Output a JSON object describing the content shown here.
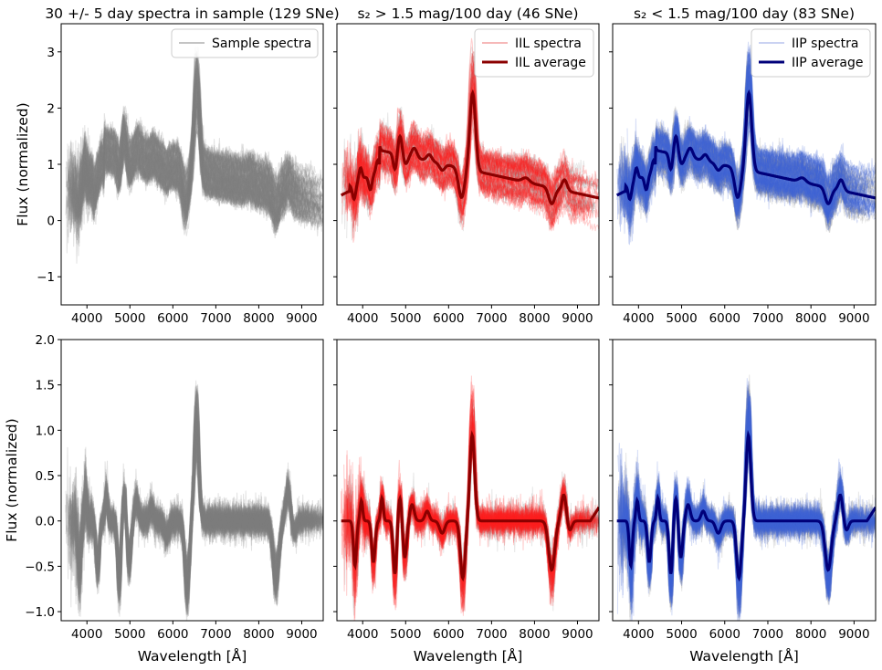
{
  "chart_data": [
    {
      "type": "line",
      "panel": "top-left",
      "title": "30 +/- 5 day spectra in sample (129 SNe)",
      "xlabel": "",
      "ylabel": "Flux (normalized)",
      "xlim": [
        3400,
        9500
      ],
      "ylim": [
        -1.5,
        3.5
      ],
      "xticks": [
        4000,
        5000,
        6000,
        7000,
        8000,
        9000
      ],
      "yticks": [
        -1,
        0,
        1,
        2,
        3
      ],
      "legend": {
        "placement": "top-right",
        "entries": [
          {
            "label": "Sample spectra",
            "color": "#b0b0b0",
            "style": "thin"
          }
        ]
      },
      "series": [
        {
          "name": "Sample spectra",
          "color": "#808080",
          "kind": "individual",
          "count": 129
        }
      ],
      "mode": "flux"
    },
    {
      "type": "line",
      "panel": "top-middle",
      "title": "s₂ > 1.5 mag/100 day (46 SNe)",
      "xlabel": "",
      "ylabel": "",
      "xlim": [
        3400,
        9500
      ],
      "ylim": [
        -1.5,
        3.5
      ],
      "xticks": [
        4000,
        5000,
        6000,
        7000,
        8000,
        9000
      ],
      "yticks": [
        -1,
        0,
        1,
        2,
        3
      ],
      "legend": {
        "placement": "top-right",
        "entries": [
          {
            "label": "IIL spectra",
            "color": "#f4a0a0",
            "style": "thin"
          },
          {
            "label": "IIL average",
            "color": "#8b0000",
            "style": "thick"
          }
        ]
      },
      "series": [
        {
          "name": "IIL spectra",
          "color": "#ff2020",
          "kind": "individual",
          "count": 46
        },
        {
          "name": "IIL average",
          "color": "#8b0000",
          "kind": "average"
        }
      ],
      "mode": "flux"
    },
    {
      "type": "line",
      "panel": "top-right",
      "title": "s₂ < 1.5 mag/100 day (83 SNe)",
      "xlabel": "",
      "ylabel": "",
      "xlim": [
        3400,
        9500
      ],
      "ylim": [
        -1.5,
        3.5
      ],
      "xticks": [
        4000,
        5000,
        6000,
        7000,
        8000,
        9000
      ],
      "yticks": [
        -1,
        0,
        1,
        2,
        3
      ],
      "legend": {
        "placement": "top-right",
        "entries": [
          {
            "label": "IIP spectra",
            "color": "#b8c4ee",
            "style": "thin"
          },
          {
            "label": "IIP average",
            "color": "#00007a",
            "style": "thick"
          }
        ]
      },
      "series": [
        {
          "name": "IIP spectra",
          "color": "#3f63d8",
          "kind": "individual",
          "count": 83
        },
        {
          "name": "IIP average",
          "color": "#00007a",
          "kind": "average"
        }
      ],
      "mode": "flux"
    },
    {
      "type": "line",
      "panel": "bottom-left",
      "title": "",
      "xlabel": "Wavelength [Å]",
      "ylabel": "Flux (normalized)",
      "xlim": [
        3400,
        9500
      ],
      "ylim": [
        -1.1,
        2.0
      ],
      "xticks": [
        4000,
        5000,
        6000,
        7000,
        8000,
        9000
      ],
      "yticks": [
        -1.0,
        -0.5,
        0.0,
        0.5,
        1.0,
        1.5,
        2.0
      ],
      "ytick_labels": [
        "−1.0",
        "−0.5",
        "0.0",
        "0.5",
        "1.0",
        "1.5",
        "2.0"
      ],
      "series": [
        {
          "name": "",
          "color": "#808080",
          "kind": "individual",
          "count": 129
        }
      ],
      "mode": "residual"
    },
    {
      "type": "line",
      "panel": "bottom-middle",
      "title": "",
      "xlabel": "Wavelength [Å]",
      "ylabel": "",
      "xlim": [
        3400,
        9500
      ],
      "ylim": [
        -1.1,
        2.0
      ],
      "xticks": [
        4000,
        5000,
        6000,
        7000,
        8000,
        9000
      ],
      "yticks": [
        -1.0,
        -0.5,
        0.0,
        0.5,
        1.0,
        1.5,
        2.0
      ],
      "series": [
        {
          "name": "",
          "color": "#ff2020",
          "kind": "individual",
          "count": 46
        },
        {
          "name": "",
          "color": "#8b0000",
          "kind": "average"
        }
      ],
      "mode": "residual"
    },
    {
      "type": "line",
      "panel": "bottom-right",
      "title": "",
      "xlabel": "Wavelength [Å]",
      "ylabel": "",
      "xlim": [
        3400,
        9500
      ],
      "ylim": [
        -1.1,
        2.0
      ],
      "xticks": [
        4000,
        5000,
        6000,
        7000,
        8000,
        9000
      ],
      "yticks": [
        -1.0,
        -0.5,
        0.0,
        0.5,
        1.0,
        1.5,
        2.0
      ],
      "series": [
        {
          "name": "",
          "color": "#3f63d8",
          "kind": "individual",
          "count": 83
        },
        {
          "name": "",
          "color": "#00007a",
          "kind": "average"
        }
      ],
      "mode": "residual"
    }
  ]
}
